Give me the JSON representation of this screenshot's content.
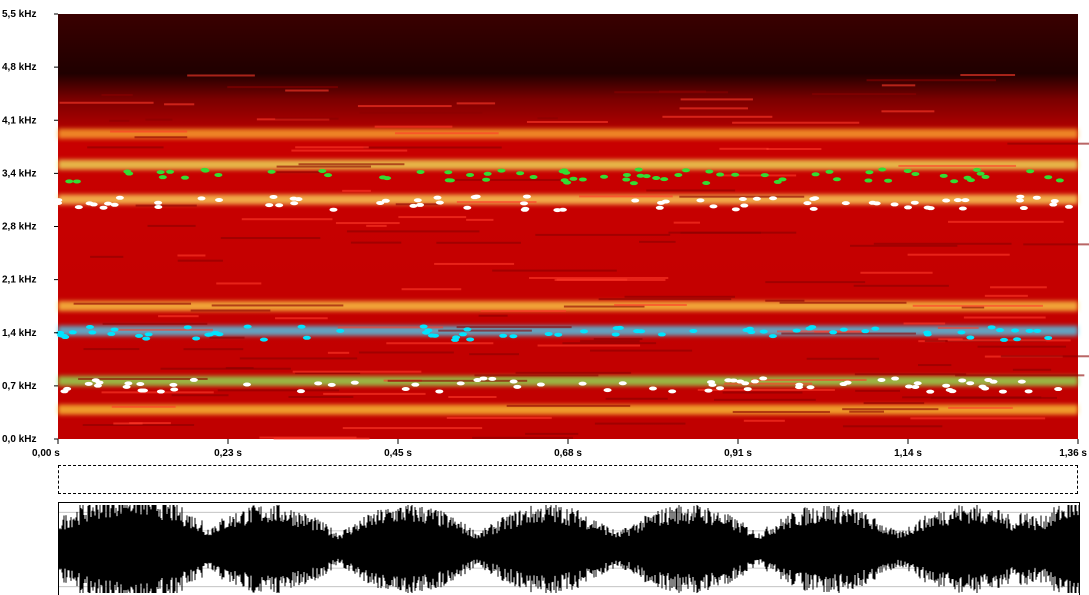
{
  "chart_data": [
    {
      "type": "heatmap",
      "title": "",
      "xlabel": "",
      "ylabel": "",
      "x_ticks": [
        "0,00 s",
        "0,23 s",
        "0,45 s",
        "0,68 s",
        "0,91 s",
        "1,14 s",
        "1,36 s"
      ],
      "y_ticks": [
        "5,5 kHz",
        "4,8 kHz",
        "4,1 kHz",
        "3,4 kHz",
        "2,8 kHz",
        "2,1 kHz",
        "1,4 kHz",
        "0,7 kHz",
        "0,0 kHz"
      ],
      "xlim": [
        0,
        1.36
      ],
      "ylim": [
        0,
        5.5
      ],
      "bands_khz": [
        0.38,
        0.75,
        1.4,
        1.72,
        3.1,
        3.55,
        3.95
      ],
      "formant_tracks": [
        {
          "name": "",
          "color": "#00e5ff",
          "approx_khz": 1.37
        },
        {
          "name": "",
          "color": "#ffffff",
          "approx_khz": 0.7
        },
        {
          "name": "",
          "color": "#ffffff",
          "approx_khz": 3.05
        },
        {
          "name": "",
          "color": "#33dd33",
          "approx_khz": 3.4
        }
      ],
      "colors": {
        "low": "#400000",
        "mid": "#d40000",
        "high": "#ffd84a",
        "peak": "#7cf05a"
      }
    },
    {
      "type": "line",
      "title": "",
      "xlabel": "",
      "ylabel": "",
      "xlim": [
        0,
        1.36
      ],
      "ylim": [
        -1,
        1
      ],
      "grid": true
    }
  ]
}
